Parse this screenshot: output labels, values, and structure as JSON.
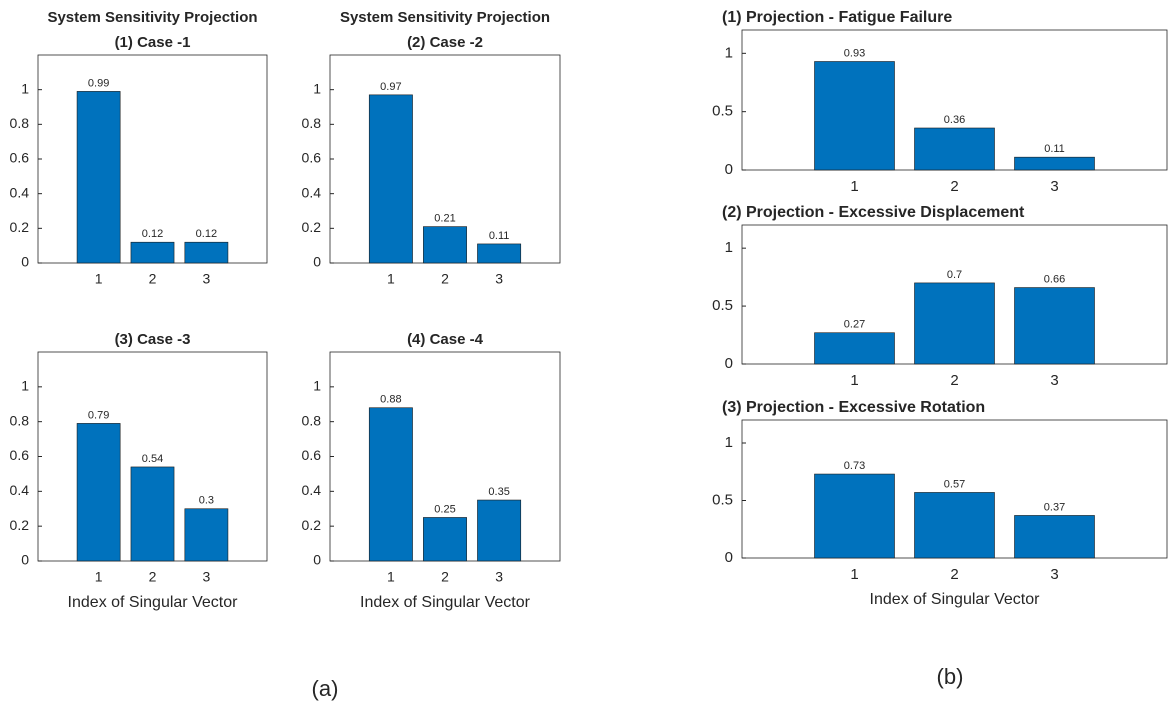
{
  "chart_data": [
    {
      "type": "bar",
      "supertitle": "System Sensitivity Projection",
      "title": "(1) Case -1",
      "categories": [
        "1",
        "2",
        "3"
      ],
      "values": [
        0.99,
        0.12,
        0.12
      ],
      "color": "#0072bd",
      "ylim": [
        0,
        1.2
      ],
      "yticks": [
        0,
        0.2,
        0.4,
        0.6,
        0.8,
        1
      ]
    },
    {
      "type": "bar",
      "supertitle": "System Sensitivity Projection",
      "title": "(2) Case -2",
      "categories": [
        "1",
        "2",
        "3"
      ],
      "values": [
        0.97,
        0.21,
        0.11
      ],
      "color": "#0072bd",
      "ylim": [
        0,
        1.2
      ],
      "yticks": [
        0,
        0.2,
        0.4,
        0.6,
        0.8,
        1
      ]
    },
    {
      "type": "bar",
      "title": "(3) Case -3",
      "xlabel": "Index of Singular Vector",
      "categories": [
        "1",
        "2",
        "3"
      ],
      "values": [
        0.79,
        0.54,
        0.3
      ],
      "color": "#0072bd",
      "ylim": [
        0,
        1.2
      ],
      "yticks": [
        0,
        0.2,
        0.4,
        0.6,
        0.8,
        1
      ]
    },
    {
      "type": "bar",
      "title": "(4) Case -4",
      "xlabel": "Index of Singular Vector",
      "categories": [
        "1",
        "2",
        "3"
      ],
      "values": [
        0.88,
        0.25,
        0.35
      ],
      "color": "#0072bd",
      "ylim": [
        0,
        1.2
      ],
      "yticks": [
        0,
        0.2,
        0.4,
        0.6,
        0.8,
        1
      ]
    },
    {
      "type": "bar",
      "title": "(1) Projection - Fatigue Failure",
      "categories": [
        "1",
        "2",
        "3"
      ],
      "values": [
        0.93,
        0.36,
        0.11
      ],
      "color": "#0072bd",
      "ylim": [
        0,
        1.2
      ],
      "yticks": [
        0,
        0.5,
        1
      ]
    },
    {
      "type": "bar",
      "title": "(2) Projection - Excessive Displacement",
      "categories": [
        "1",
        "2",
        "3"
      ],
      "values": [
        0.27,
        0.7,
        0.66
      ],
      "color": "#0072bd",
      "ylim": [
        0,
        1.2
      ],
      "yticks": [
        0,
        0.5,
        1
      ]
    },
    {
      "type": "bar",
      "title": "(3) Projection - Excessive Rotation",
      "xlabel": "Index of Singular Vector",
      "categories": [
        "1",
        "2",
        "3"
      ],
      "values": [
        0.73,
        0.57,
        0.37
      ],
      "color": "#0072bd",
      "ylim": [
        0,
        1.2
      ],
      "yticks": [
        0,
        0.5,
        1
      ]
    }
  ],
  "panel_labels": [
    "(a)",
    "(b)"
  ]
}
